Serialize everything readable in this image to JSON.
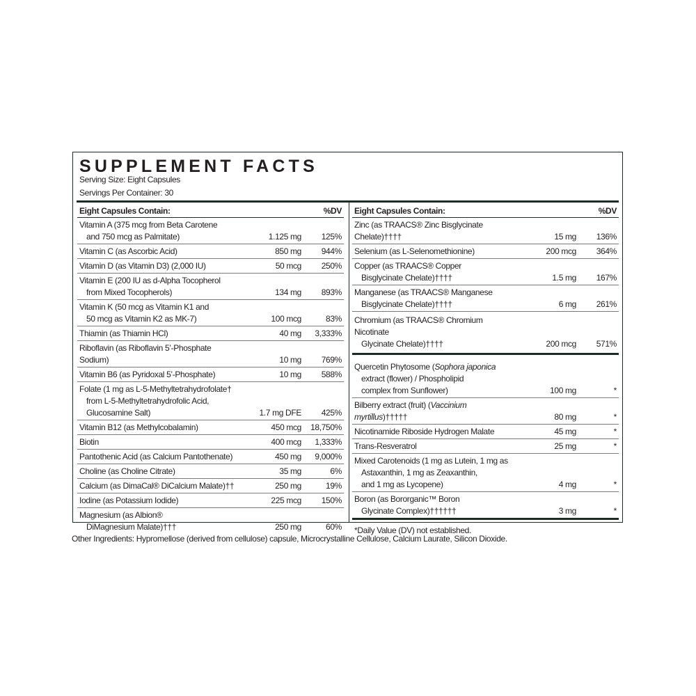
{
  "title": "SUPPLEMENT FACTS",
  "serving_size": "Serving Size: Eight Capsules",
  "servings_per_container": "Servings Per Container: 30",
  "left": {
    "header": {
      "label": "Eight Capsules Contain:",
      "dv": "%DV"
    },
    "rows": [
      {
        "lines": [
          [
            {
              "t": "Vitamin A (375 mcg from Beta Carotene"
            }
          ],
          [
            {
              "t": "and 750 mcg as Palmitate)"
            }
          ]
        ],
        "amount": "1.125 mg",
        "dv": "125%"
      },
      {
        "lines": [
          [
            {
              "t": "Vitamin C (as Ascorbic Acid)"
            }
          ]
        ],
        "amount": "850 mg",
        "dv": "944%"
      },
      {
        "lines": [
          [
            {
              "t": "Vitamin D (as Vitamin D3) (2,000 IU)"
            }
          ]
        ],
        "amount": "50 mcg",
        "dv": "250%"
      },
      {
        "lines": [
          [
            {
              "t": "Vitamin E (200 IU as d-Alpha Tocopherol"
            }
          ],
          [
            {
              "t": "from Mixed Tocopherols)"
            }
          ]
        ],
        "amount": "134 mg",
        "dv": "893%"
      },
      {
        "lines": [
          [
            {
              "t": "Vitamin K (50 mcg as Vitamin K1 and"
            }
          ],
          [
            {
              "t": "50 mcg as Vitamin K2 as MK-7)"
            }
          ]
        ],
        "amount": "100 mcg",
        "dv": "83%"
      },
      {
        "lines": [
          [
            {
              "t": "Thiamin (as Thiamin HCl)"
            }
          ]
        ],
        "amount": "40 mg",
        "dv": "3,333%"
      },
      {
        "lines": [
          [
            {
              "t": "Riboflavin (as Riboflavin 5’-Phosphate Sodium)"
            }
          ]
        ],
        "amount": "10 mg",
        "dv": "769%"
      },
      {
        "lines": [
          [
            {
              "t": "Vitamin B6 (as Pyridoxal 5’-Phosphate)"
            }
          ]
        ],
        "amount": "10 mg",
        "dv": "588%"
      },
      {
        "lines": [
          [
            {
              "t": "Folate (1 mg as L-5-Methyltetrahydrofolate†"
            }
          ],
          [
            {
              "t": "from L-5-Methyltetrahydrofolic Acid,"
            }
          ],
          [
            {
              "t": "Glucosamine Salt)"
            }
          ]
        ],
        "amount": "1.7 mg DFE",
        "dv": "425%"
      },
      {
        "lines": [
          [
            {
              "t": "Vitamin B12 (as Methylcobalamin)"
            }
          ]
        ],
        "amount": "450 mcg",
        "dv": "18,750%"
      },
      {
        "lines": [
          [
            {
              "t": "Biotin"
            }
          ]
        ],
        "amount": "400 mcg",
        "dv": "1,333%"
      },
      {
        "lines": [
          [
            {
              "t": "Pantothenic Acid (as Calcium Pantothenate)"
            }
          ]
        ],
        "amount": "450 mg",
        "dv": "9,000%"
      },
      {
        "lines": [
          [
            {
              "t": "Choline (as Choline Citrate)"
            }
          ]
        ],
        "amount": "35 mg",
        "dv": "6%"
      },
      {
        "lines": [
          [
            {
              "t": "Calcium (as DimaCal® DiCalcium Malate)††"
            }
          ]
        ],
        "amount": "250 mg",
        "dv": "19%"
      },
      {
        "lines": [
          [
            {
              "t": "Iodine (as Potassium Iodide)"
            }
          ]
        ],
        "amount": "225 mcg",
        "dv": "150%"
      },
      {
        "lines": [
          [
            {
              "t": "Magnesium (as Albion®"
            }
          ],
          [
            {
              "t": "DiMagnesium Malate)†††"
            }
          ]
        ],
        "amount": "250 mg",
        "dv": "60%"
      }
    ]
  },
  "right": {
    "header": {
      "label": "Eight Capsules Contain:",
      "dv": "%DV"
    },
    "minerals": [
      {
        "lines": [
          [
            {
              "t": "Zinc (as TRAACS® Zinc Bisglycinate Chelate)††††"
            }
          ]
        ],
        "amount": "15 mg",
        "dv": "136%"
      },
      {
        "lines": [
          [
            {
              "t": "Selenium (as L-Selenomethionine)"
            }
          ]
        ],
        "amount": "200 mcg",
        "dv": "364%"
      },
      {
        "lines": [
          [
            {
              "t": "Copper (as TRAACS® Copper"
            }
          ],
          [
            {
              "t": "Bisglycinate Chelate)††††"
            }
          ]
        ],
        "amount": "1.5 mg",
        "dv": "167%"
      },
      {
        "lines": [
          [
            {
              "t": "Manganese (as TRAACS® Manganese"
            }
          ],
          [
            {
              "t": "Bisglycinate Chelate)††††"
            }
          ]
        ],
        "amount": "6 mg",
        "dv": "261%"
      },
      {
        "lines": [
          [
            {
              "t": "Chromium (as TRAACS® Chromium Nicotinate"
            }
          ],
          [
            {
              "t": "Glycinate Chelate)††††"
            }
          ]
        ],
        "amount": "200 mcg",
        "dv": "571%"
      }
    ],
    "others": [
      {
        "lines": [
          [
            {
              "t": "Quercetin Phytosome ("
            },
            {
              "t": "Sophora japonica",
              "i": true
            }
          ],
          [
            {
              "t": "extract (flower) / Phospholipid"
            }
          ],
          [
            {
              "t": "complex from Sunflower)"
            }
          ]
        ],
        "amount": "100 mg",
        "dv": "*"
      },
      {
        "lines": [
          [
            {
              "t": "Bilberry extract (fruit) ("
            },
            {
              "t": "Vaccinium myrtillus",
              "i": true
            },
            {
              "t": ")†††††"
            }
          ]
        ],
        "amount": "80 mg",
        "dv": "*"
      },
      {
        "lines": [
          [
            {
              "t": "Nicotinamide Riboside Hydrogen Malate"
            }
          ]
        ],
        "amount": "45 mg",
        "dv": "*"
      },
      {
        "lines": [
          [
            {
              "t": "Trans-Resveratrol"
            }
          ]
        ],
        "amount": "25 mg",
        "dv": "*"
      },
      {
        "lines": [
          [
            {
              "t": "Mixed Carotenoids (1 mg as Lutein, 1 mg as"
            }
          ],
          [
            {
              "t": "Astaxanthin, 1 mg as Zeaxanthin,"
            }
          ],
          [
            {
              "t": "and 1 mg as Lycopene)"
            }
          ]
        ],
        "amount": "4 mg",
        "dv": "*"
      },
      {
        "lines": [
          [
            {
              "t": "Boron (as Bororganic™ Boron"
            }
          ],
          [
            {
              "t": "Glycinate Complex)††††††"
            }
          ]
        ],
        "amount": "3 mg",
        "dv": "*"
      }
    ],
    "footnote": "*Daily Value (DV) not established."
  },
  "other_ingredients": "Other Ingredients: Hypromellose (derived from cellulose) capsule, Microcrystalline Cellulose, Calcium Laurate, Silicon Dioxide.",
  "colors": {
    "border": "#1d2b24",
    "text": "#231f20"
  }
}
